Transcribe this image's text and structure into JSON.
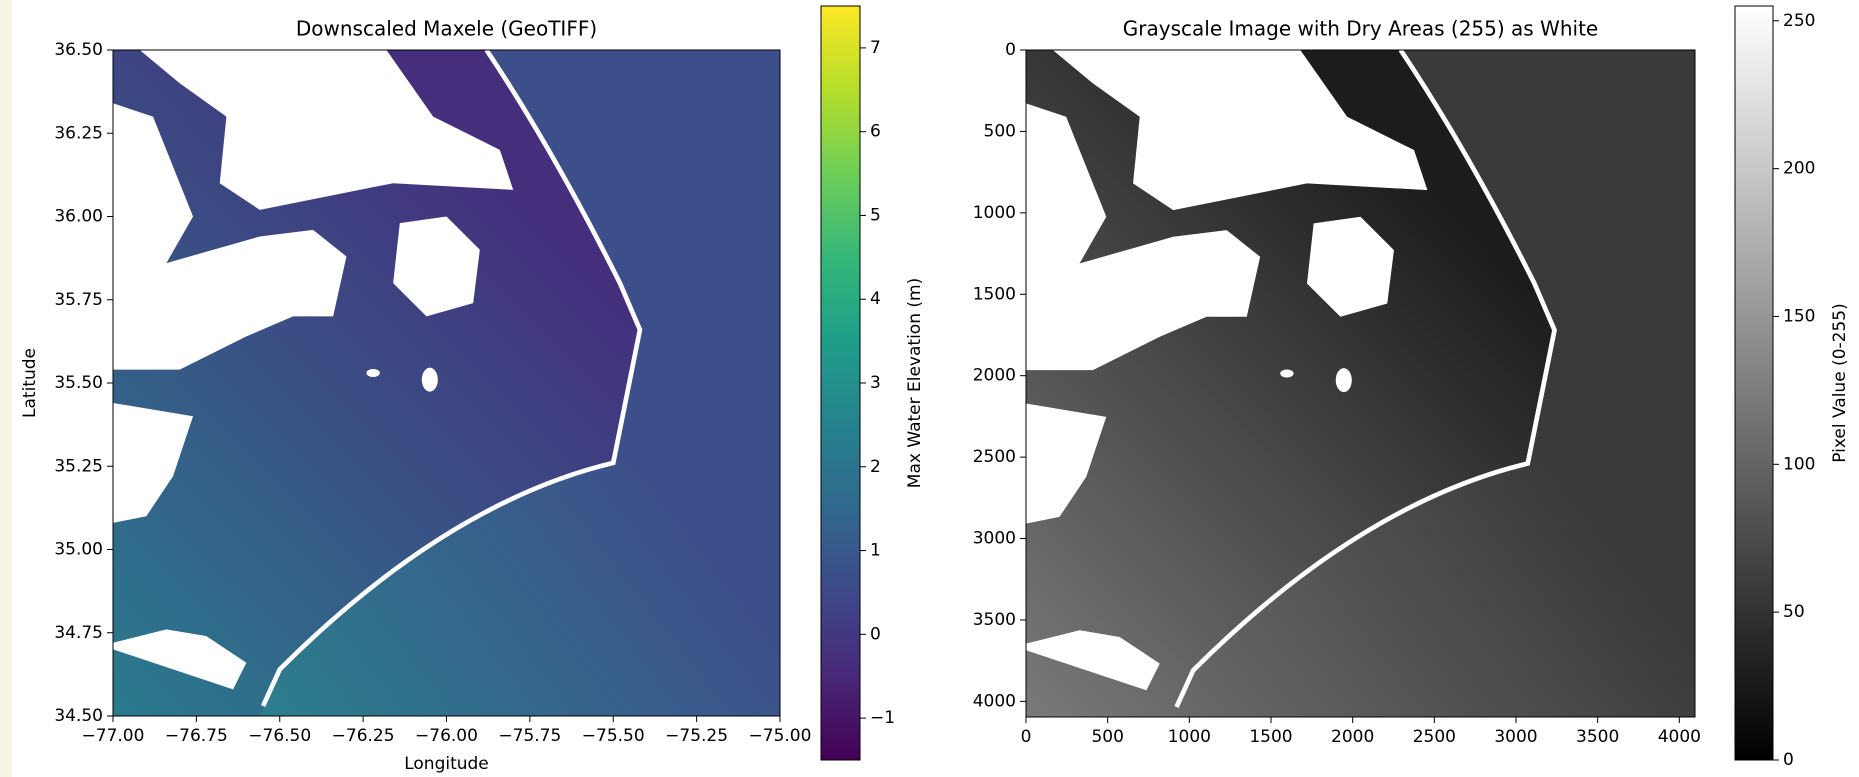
{
  "chart_data": [
    {
      "type": "image",
      "title": "Downscaled Maxele (GeoTIFF)",
      "x_label": "Longitude",
      "y_label": "Latitude",
      "xlim": [
        -77,
        -75
      ],
      "ylim": [
        34.5,
        36.5
      ],
      "xticks": [
        {
          "value": -77,
          "label": "−77.00"
        },
        {
          "value": -76.75,
          "label": "−76.75"
        },
        {
          "value": -76.5,
          "label": "−76.50"
        },
        {
          "value": -76.25,
          "label": "−76.25"
        },
        {
          "value": -76,
          "label": "−76.00"
        },
        {
          "value": -75.75,
          "label": "−75.75"
        },
        {
          "value": -75.5,
          "label": "−75.50"
        },
        {
          "value": -75.25,
          "label": "−75.25"
        },
        {
          "value": -75,
          "label": "−75.00"
        }
      ],
      "yticks": [
        {
          "value": 34.5,
          "label": "34.50"
        },
        {
          "value": 34.75,
          "label": "34.75"
        },
        {
          "value": 35,
          "label": "35.00"
        },
        {
          "value": 35.25,
          "label": "35.25"
        },
        {
          "value": 35.5,
          "label": "35.50"
        },
        {
          "value": 35.75,
          "label": "35.75"
        },
        {
          "value": 36,
          "label": "36.00"
        },
        {
          "value": 36.25,
          "label": "36.25"
        },
        {
          "value": 36.5,
          "label": "36.50"
        }
      ],
      "colormap": "viridis",
      "colorbar_label": "Max Water Elevation (m)",
      "clim": [
        -1.5,
        7.5
      ],
      "cticks": [
        {
          "value": -1,
          "label": "−1"
        },
        0,
        1,
        2,
        3,
        4,
        5,
        6,
        7
      ]
    },
    {
      "type": "image",
      "title": "Grayscale Image with Dry Areas (255) as White",
      "xlim": [
        0,
        4096
      ],
      "ylim": [
        4096,
        0
      ],
      "xticks": [
        0,
        500,
        1000,
        1500,
        2000,
        2500,
        3000,
        3500,
        4000
      ],
      "yticks": [
        0,
        500,
        1000,
        1500,
        2000,
        2500,
        3000,
        3500,
        4000
      ],
      "colormap": "gray",
      "colorbar_label": "Pixel Value (0-255)",
      "clim": [
        0,
        255
      ],
      "cticks": [
        0,
        50,
        100,
        150,
        200,
        250
      ]
    }
  ]
}
